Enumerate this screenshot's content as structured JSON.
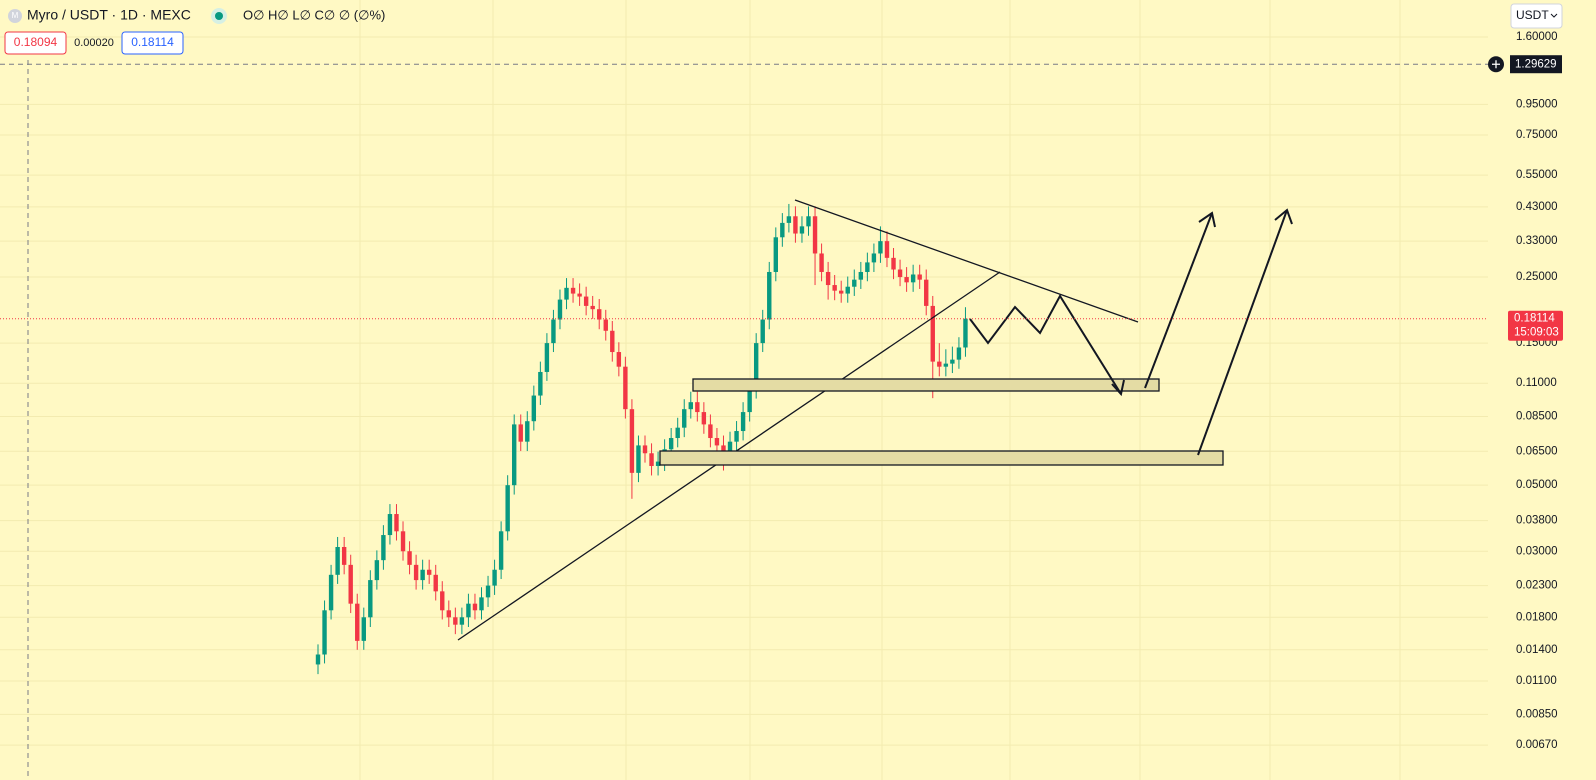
{
  "chart_data": {
    "type": "candlestick",
    "title": "Myro / USDT · 1D · MEXC",
    "ohlc_legend": "O∅ H∅ L∅ C∅ ∅ (∅%)",
    "bid": 0.18094,
    "spread": {
      "value": 0.0002,
      "label": "0.00020"
    },
    "ask": 0.18114,
    "currency": "USDT",
    "last_price": 0.18114,
    "countdown": "15:09:03",
    "crosshair_price": 1.29629,
    "up_color": "#089981",
    "down_color": "#f23645",
    "log_scale": true,
    "grid": true,
    "ylim": [
      0.0057,
      2.13
    ],
    "yticks": [
      {
        "value": 1.6,
        "label": "1.60000"
      },
      {
        "value": 0.95,
        "label": "0.95000"
      },
      {
        "value": 0.75,
        "label": "0.75000"
      },
      {
        "value": 0.55,
        "label": "0.55000"
      },
      {
        "value": 0.43,
        "label": "0.43000"
      },
      {
        "value": 0.33,
        "label": "0.33000"
      },
      {
        "value": 0.25,
        "label": "0.25000"
      },
      {
        "value": 0.15,
        "label": "0.15000"
      },
      {
        "value": 0.11,
        "label": "0.11000"
      },
      {
        "value": 0.085,
        "label": "0.08500"
      },
      {
        "value": 0.065,
        "label": "0.06500"
      },
      {
        "value": 0.05,
        "label": "0.05000"
      },
      {
        "value": 0.038,
        "label": "0.03800"
      },
      {
        "value": 0.03,
        "label": "0.03000"
      },
      {
        "value": 0.023,
        "label": "0.02300"
      },
      {
        "value": 0.018,
        "label": "0.01800"
      },
      {
        "value": 0.014,
        "label": "0.01400"
      },
      {
        "value": 0.011,
        "label": "0.01100"
      },
      {
        "value": 0.0085,
        "label": "0.00850"
      },
      {
        "value": 0.0067,
        "label": "0.00670"
      }
    ],
    "candles": [
      [
        0.0125,
        0.0146,
        0.0116,
        0.0135
      ],
      [
        0.0135,
        0.0205,
        0.0126,
        0.019
      ],
      [
        0.019,
        0.027,
        0.0177,
        0.025
      ],
      [
        0.025,
        0.0335,
        0.0233,
        0.031
      ],
      [
        0.031,
        0.0335,
        0.0251,
        0.027
      ],
      [
        0.027,
        0.0292,
        0.0186,
        0.02
      ],
      [
        0.02,
        0.0216,
        0.014,
        0.015
      ],
      [
        0.015,
        0.0194,
        0.014,
        0.018
      ],
      [
        0.018,
        0.0259,
        0.0167,
        0.024
      ],
      [
        0.024,
        0.0302,
        0.0223,
        0.028
      ],
      [
        0.028,
        0.0367,
        0.026,
        0.034
      ],
      [
        0.034,
        0.0432,
        0.0316,
        0.04
      ],
      [
        0.04,
        0.0432,
        0.0326,
        0.035
      ],
      [
        0.035,
        0.0378,
        0.0279,
        0.03
      ],
      [
        0.03,
        0.0324,
        0.0251,
        0.027
      ],
      [
        0.027,
        0.0292,
        0.0223,
        0.024
      ],
      [
        0.024,
        0.0281,
        0.0223,
        0.026
      ],
      [
        0.026,
        0.0281,
        0.0233,
        0.025
      ],
      [
        0.025,
        0.027,
        0.0205,
        0.022
      ],
      [
        0.022,
        0.0238,
        0.0177,
        0.019
      ],
      [
        0.019,
        0.0205,
        0.0167,
        0.018
      ],
      [
        0.018,
        0.0194,
        0.0158,
        0.017
      ],
      [
        0.017,
        0.0194,
        0.0158,
        0.018
      ],
      [
        0.018,
        0.0216,
        0.0167,
        0.02
      ],
      [
        0.02,
        0.0216,
        0.0177,
        0.019
      ],
      [
        0.019,
        0.0227,
        0.0177,
        0.021
      ],
      [
        0.021,
        0.0248,
        0.0195,
        0.023
      ],
      [
        0.023,
        0.0281,
        0.0214,
        0.026
      ],
      [
        0.026,
        0.0378,
        0.0242,
        0.035
      ],
      [
        0.035,
        0.054,
        0.0326,
        0.05
      ],
      [
        0.05,
        0.0864,
        0.0465,
        0.08
      ],
      [
        0.08,
        0.0864,
        0.0651,
        0.07
      ],
      [
        0.07,
        0.0886,
        0.0651,
        0.082
      ],
      [
        0.082,
        0.108,
        0.0763,
        0.1
      ],
      [
        0.1,
        0.13,
        0.093,
        0.12
      ],
      [
        0.12,
        0.162,
        0.112,
        0.15
      ],
      [
        0.15,
        0.194,
        0.14,
        0.18
      ],
      [
        0.18,
        0.227,
        0.167,
        0.21
      ],
      [
        0.21,
        0.248,
        0.195,
        0.23
      ],
      [
        0.23,
        0.248,
        0.205,
        0.22
      ],
      [
        0.22,
        0.238,
        0.2,
        0.215
      ],
      [
        0.215,
        0.232,
        0.186,
        0.2
      ],
      [
        0.2,
        0.216,
        0.181,
        0.195
      ],
      [
        0.195,
        0.211,
        0.167,
        0.18
      ],
      [
        0.18,
        0.194,
        0.153,
        0.165
      ],
      [
        0.165,
        0.178,
        0.13,
        0.14
      ],
      [
        0.14,
        0.151,
        0.116,
        0.125
      ],
      [
        0.125,
        0.135,
        0.0837,
        0.09
      ],
      [
        0.09,
        0.0972,
        0.045,
        0.055
      ],
      [
        0.055,
        0.0734,
        0.0512,
        0.068
      ],
      [
        0.068,
        0.0734,
        0.0595,
        0.064
      ],
      [
        0.064,
        0.0691,
        0.0539,
        0.058
      ],
      [
        0.058,
        0.0648,
        0.0539,
        0.06
      ],
      [
        0.06,
        0.0713,
        0.0558,
        0.066
      ],
      [
        0.066,
        0.0778,
        0.0614,
        0.072
      ],
      [
        0.072,
        0.0842,
        0.067,
        0.078
      ],
      [
        0.078,
        0.0972,
        0.0725,
        0.09
      ],
      [
        0.09,
        0.103,
        0.0837,
        0.095
      ],
      [
        0.095,
        0.103,
        0.0818,
        0.088
      ],
      [
        0.088,
        0.095,
        0.0744,
        0.08
      ],
      [
        0.08,
        0.0864,
        0.067,
        0.072
      ],
      [
        0.072,
        0.0778,
        0.0632,
        0.068
      ],
      [
        0.068,
        0.0734,
        0.056,
        0.064
      ],
      [
        0.064,
        0.0756,
        0.0595,
        0.07
      ],
      [
        0.07,
        0.0821,
        0.0651,
        0.076
      ],
      [
        0.076,
        0.095,
        0.0707,
        0.088
      ],
      [
        0.088,
        0.113,
        0.0818,
        0.105
      ],
      [
        0.105,
        0.162,
        0.0977,
        0.15
      ],
      [
        0.15,
        0.194,
        0.14,
        0.18
      ],
      [
        0.18,
        0.281,
        0.167,
        0.26
      ],
      [
        0.26,
        0.367,
        0.242,
        0.34
      ],
      [
        0.34,
        0.41,
        0.316,
        0.38
      ],
      [
        0.38,
        0.44,
        0.353,
        0.4
      ],
      [
        0.4,
        0.432,
        0.326,
        0.35
      ],
      [
        0.35,
        0.4,
        0.326,
        0.37
      ],
      [
        0.37,
        0.432,
        0.344,
        0.4
      ],
      [
        0.4,
        0.432,
        0.235,
        0.3
      ],
      [
        0.3,
        0.324,
        0.242,
        0.26
      ],
      [
        0.26,
        0.281,
        0.21,
        0.235
      ],
      [
        0.235,
        0.254,
        0.209,
        0.225
      ],
      [
        0.225,
        0.243,
        0.205,
        0.22
      ],
      [
        0.22,
        0.251,
        0.205,
        0.232
      ],
      [
        0.232,
        0.265,
        0.216,
        0.245
      ],
      [
        0.245,
        0.281,
        0.228,
        0.26
      ],
      [
        0.26,
        0.302,
        0.242,
        0.28
      ],
      [
        0.28,
        0.324,
        0.26,
        0.3
      ],
      [
        0.3,
        0.37,
        0.279,
        0.33
      ],
      [
        0.33,
        0.356,
        0.27,
        0.29
      ],
      [
        0.29,
        0.313,
        0.246,
        0.265
      ],
      [
        0.265,
        0.286,
        0.233,
        0.25
      ],
      [
        0.25,
        0.27,
        0.223,
        0.24
      ],
      [
        0.24,
        0.275,
        0.223,
        0.255
      ],
      [
        0.255,
        0.275,
        0.228,
        0.245
      ],
      [
        0.245,
        0.265,
        0.186,
        0.2
      ],
      [
        0.2,
        0.216,
        0.098,
        0.13
      ],
      [
        0.13,
        0.15,
        0.116,
        0.125
      ],
      [
        0.125,
        0.143,
        0.116,
        0.128
      ],
      [
        0.128,
        0.146,
        0.119,
        0.132
      ],
      [
        0.132,
        0.157,
        0.123,
        0.145
      ],
      [
        0.145,
        0.198,
        0.135,
        0.18114
      ]
    ]
  }
}
